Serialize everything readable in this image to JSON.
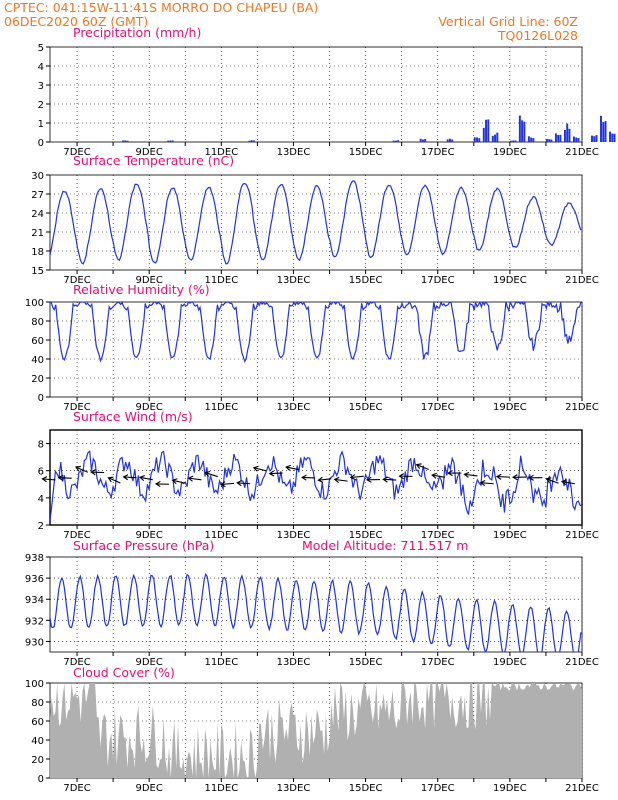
{
  "header": {
    "line1": "CPTEC:   041:15W-11:41S   MORRO DO CHAPEU (BA)",
    "line2": "06DEC2020 60Z (GMT)",
    "grid_note": "Vertical Grid Line: 60Z",
    "code": "TQ0126L028"
  },
  "model_altitude": "Model Altitude: 711.517 m",
  "x_tick_labels": [
    "7DEC",
    "9DEC",
    "11DEC",
    "13DEC",
    "15DEC",
    "17DEC",
    "19DEC",
    "21DEC"
  ],
  "colors": {
    "line": "#2233dd",
    "cloud_fill": "#b0b0b0",
    "title": "#dd1177",
    "header": "#ee7722",
    "arrow": "#000000"
  },
  "chart_data": [
    {
      "id": "precip",
      "type": "bar",
      "title": "Precipitation (mm/h)",
      "ylim": [
        0,
        5
      ],
      "yticks": [
        0,
        1,
        2,
        3,
        4,
        5
      ],
      "xlim_days": [
        6.25,
        21.0
      ],
      "grid": "dotted",
      "values_sampled_every_6h_from": "6DEC 06Z",
      "values": [
        0,
        0,
        0,
        0,
        0,
        0,
        0,
        0,
        0.1,
        0,
        0,
        0,
        0,
        0.1,
        0,
        0,
        0,
        0,
        0,
        0,
        0,
        0,
        0.1,
        0,
        0,
        0,
        0,
        0,
        0,
        0,
        0,
        0,
        0,
        0,
        0,
        0,
        0,
        0,
        0.1,
        0,
        0,
        0.2,
        0,
        0,
        0.2,
        0,
        0,
        0.3,
        1.2,
        0.5,
        0,
        0.1,
        1.6,
        0.3,
        0,
        0.2,
        0.5,
        1.0,
        0.3,
        0,
        0.4,
        1.6,
        0.7,
        0,
        0.8,
        1.7,
        0.9,
        0.3,
        1.3,
        2.1,
        1.5,
        0.6,
        1.1,
        1.6,
        1.3,
        0.5,
        1.0,
        1.3,
        1.0,
        0.3,
        0.4,
        1.1,
        0.6,
        0.4,
        0.2,
        0.1,
        0
      ]
    },
    {
      "id": "temp",
      "type": "line",
      "title": "Surface Temperature (nC)",
      "ylim": [
        15,
        30
      ],
      "yticks": [
        15,
        18,
        21,
        24,
        27,
        30
      ],
      "grid": "dotted",
      "days_max": [
        27.5,
        27.8,
        28.5,
        28.0,
        28.0,
        28.8,
        28.5,
        28.2,
        29.0,
        28.5,
        28.3,
        28.0,
        27.8,
        26.5,
        25.5,
        25.0,
        25.5,
        24.5,
        24.0,
        24.5,
        25.0,
        24.8,
        24.2,
        25.5,
        25.2,
        25.0,
        25.3,
        25.5,
        25.0,
        25.2,
        25.0
      ],
      "days_min": [
        16.0,
        16.0,
        16.5,
        16.0,
        16.5,
        16.0,
        16.5,
        16.5,
        17.0,
        17.0,
        17.5,
        17.5,
        18.0,
        18.5,
        19.0,
        19.5,
        19.0,
        20.0,
        20.5,
        20.5,
        19.5,
        20.0,
        20.0,
        20.5,
        21.0,
        21.0,
        20.5,
        20.5,
        21.0,
        20.5,
        21.0
      ]
    },
    {
      "id": "rh",
      "type": "line",
      "title": "Relative Humidity (%)",
      "ylim": [
        0,
        100
      ],
      "yticks": [
        0,
        20,
        40,
        60,
        80,
        100
      ],
      "grid": "dotted"
    },
    {
      "id": "wind",
      "type": "line",
      "title": "Surface Wind (m/s)",
      "ylim": [
        2,
        9
      ],
      "yticks": [
        2,
        4,
        6,
        8
      ],
      "grid": "dotted",
      "arrows": "wind direction barbs along ~5.5 m/s, pointing mostly west/southwest"
    },
    {
      "id": "press",
      "type": "line",
      "title": "Surface Pressure (hPa)",
      "ylim": [
        929,
        938
      ],
      "yticks": [
        930,
        932,
        934,
        936,
        938
      ],
      "grid": "dotted"
    },
    {
      "id": "cloud",
      "type": "area",
      "title": "Cloud Cover (%)",
      "ylim": [
        0,
        100
      ],
      "yticks": [
        0,
        20,
        40,
        60,
        80,
        100
      ],
      "grid": "dotted"
    }
  ]
}
